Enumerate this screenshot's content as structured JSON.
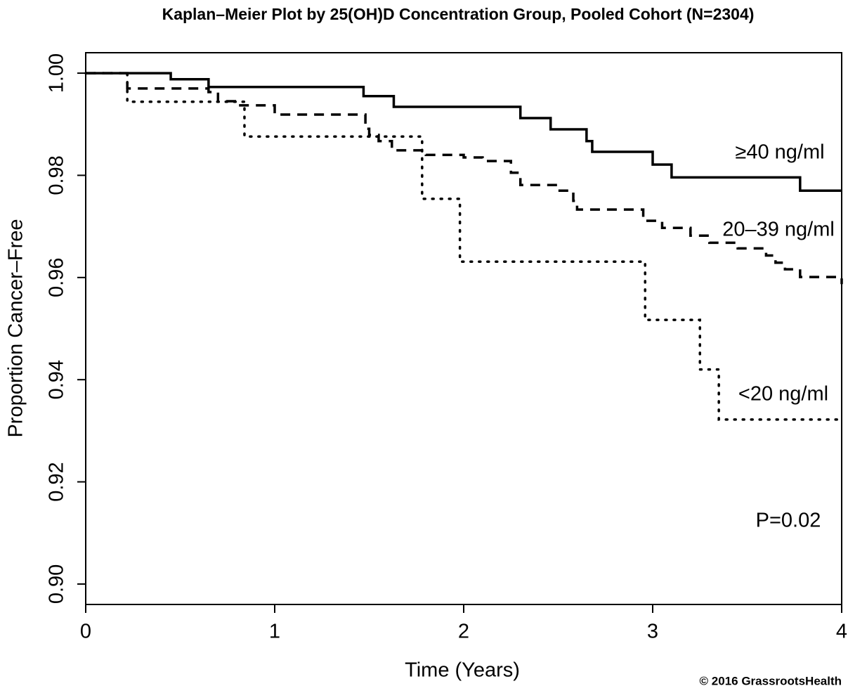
{
  "chart_data": {
    "type": "step",
    "title": "Kaplan–Meier Plot by 25(OH)D Concentration Group, Pooled Cohort (N=2304)",
    "x_label": "Time (Years)",
    "y_label": "Proportion Cancer–Free",
    "xlim": [
      0,
      4
    ],
    "ylim": [
      0.896,
      1.004
    ],
    "xticks": [
      0,
      1,
      2,
      3,
      4
    ],
    "yticks": [
      {
        "value": 0.9,
        "label": "0.90"
      },
      {
        "value": 0.92,
        "label": "0.92"
      },
      {
        "value": 0.94,
        "label": "0.94"
      },
      {
        "value": 0.96,
        "label": "0.96"
      },
      {
        "value": 0.98,
        "label": "0.98"
      },
      {
        "value": 1.0,
        "label": "1.00"
      }
    ],
    "step": "post",
    "series": [
      {
        "name": "≥40 ng/ml",
        "color": "#000000",
        "dash": "solid",
        "x": [
          0,
          0.45,
          0.65,
          1.47,
          1.63,
          2.3,
          2.46,
          2.65,
          2.68,
          3.0,
          3.1,
          3.78,
          4.0
        ],
        "values": [
          1.0,
          0.9988,
          0.9973,
          0.9955,
          0.9934,
          0.9912,
          0.989,
          0.9867,
          0.9846,
          0.9821,
          0.9796,
          0.977,
          0.977
        ]
      },
      {
        "name": "20–39 ng/ml",
        "color": "#000000",
        "dash": "dashed",
        "x": [
          0,
          0.22,
          0.65,
          0.7,
          0.8,
          1.0,
          1.48,
          1.5,
          1.55,
          1.62,
          1.8,
          2.0,
          2.1,
          2.25,
          2.3,
          2.5,
          2.58,
          2.6,
          2.95,
          3.05,
          3.2,
          3.3,
          3.45,
          3.6,
          3.65,
          3.7,
          3.78,
          4.0
        ],
        "values": [
          1.0,
          0.997,
          0.9963,
          0.9945,
          0.9937,
          0.9919,
          0.9891,
          0.9879,
          0.9867,
          0.9849,
          0.984,
          0.9835,
          0.9828,
          0.9805,
          0.9781,
          0.977,
          0.975,
          0.9733,
          0.9711,
          0.9697,
          0.9682,
          0.9668,
          0.9657,
          0.9643,
          0.9629,
          0.9616,
          0.9601,
          0.9587
        ]
      },
      {
        "name": "<20 ng/ml",
        "color": "#000000",
        "dash": "dotted",
        "x": [
          0,
          0.22,
          0.84,
          1.78,
          1.98,
          2.96,
          3.25,
          3.35,
          4.0
        ],
        "values": [
          1.0,
          0.9944,
          0.9876,
          0.9754,
          0.9631,
          0.9517,
          0.942,
          0.9322,
          0.9322
        ]
      }
    ],
    "annotation": "P=0.02",
    "credit": "© 2016 GrassrootsHealth"
  }
}
